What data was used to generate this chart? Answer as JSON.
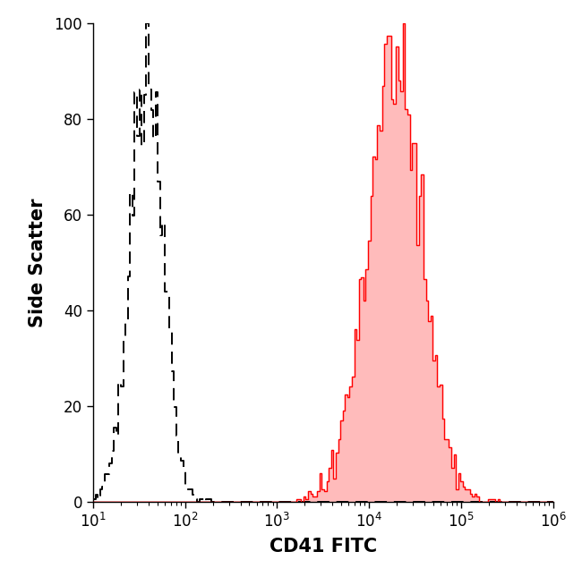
{
  "title": "",
  "xlabel": "CD41 FITC",
  "ylabel": "Side Scatter",
  "xlim": [
    10,
    1000000
  ],
  "ylim": [
    0,
    100
  ],
  "yticks": [
    0,
    20,
    40,
    60,
    80,
    100
  ],
  "background_color": "#ffffff",
  "dashed_color": "#000000",
  "red_color": "#ff0000",
  "red_fill_color": "#ffbbbb",
  "dashed_peak_log10": 1.58,
  "dashed_sigma_log10": 0.18,
  "dashed_seed": 17,
  "dashed_n": 3000,
  "red_peak_log10": 4.28,
  "red_sigma_log10": 0.3,
  "red_seed": 7,
  "red_n": 5000,
  "n_bins": 200,
  "xlabel_fontsize": 15,
  "ylabel_fontsize": 15,
  "tick_fontsize": 12,
  "figsize": [
    6.5,
    6.45
  ],
  "dpi": 100
}
